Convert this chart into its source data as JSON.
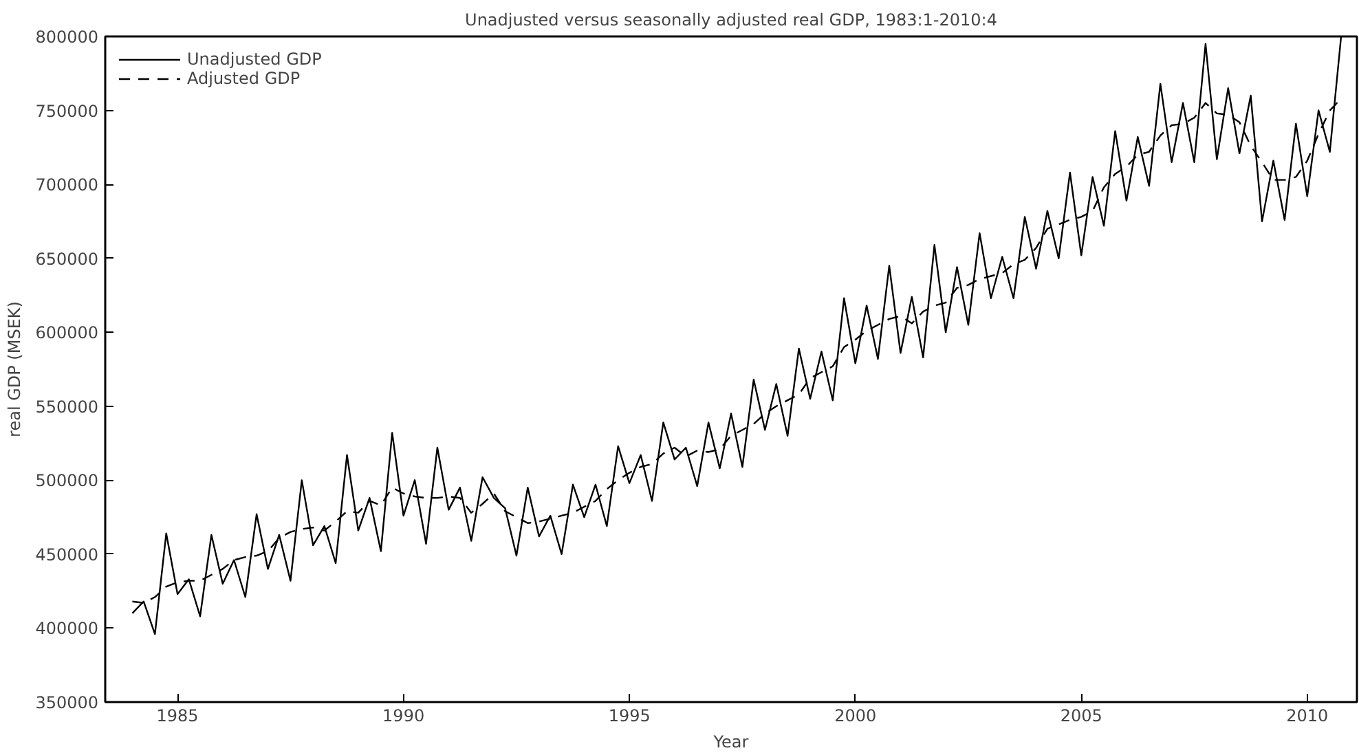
{
  "chart_data": {
    "type": "line",
    "title": "Unadjusted versus seasonally adjusted real GDP, 1983:1-2010:4",
    "xlabel": "Year",
    "ylabel": "real GDP (MSEK)",
    "x": [
      1984.0,
      1984.25,
      1984.5,
      1984.75,
      1985.0,
      1985.25,
      1985.5,
      1985.75,
      1986.0,
      1986.25,
      1986.5,
      1986.75,
      1987.0,
      1987.25,
      1987.5,
      1987.75,
      1988.0,
      1988.25,
      1988.5,
      1988.75,
      1989.0,
      1989.25,
      1989.5,
      1989.75,
      1990.0,
      1990.25,
      1990.5,
      1990.75,
      1991.0,
      1991.25,
      1991.5,
      1991.75,
      1992.0,
      1992.25,
      1992.5,
      1992.75,
      1993.0,
      1993.25,
      1993.5,
      1993.75,
      1994.0,
      1994.25,
      1994.5,
      1994.75,
      1995.0,
      1995.25,
      1995.5,
      1995.75,
      1996.0,
      1996.25,
      1996.5,
      1996.75,
      1997.0,
      1997.25,
      1997.5,
      1997.75,
      1998.0,
      1998.25,
      1998.5,
      1998.75,
      1999.0,
      1999.25,
      1999.5,
      1999.75,
      2000.0,
      2000.25,
      2000.5,
      2000.75,
      2001.0,
      2001.25,
      2001.5,
      2001.75,
      2002.0,
      2002.25,
      2002.5,
      2002.75,
      2003.0,
      2003.25,
      2003.5,
      2003.75,
      2004.0,
      2004.25,
      2004.5,
      2004.75,
      2005.0,
      2005.25,
      2005.5,
      2005.75,
      2006.0,
      2006.25,
      2006.5,
      2006.75,
      2007.0,
      2007.25,
      2007.5,
      2007.75,
      2008.0,
      2008.25,
      2008.5,
      2008.75,
      2009.0,
      2009.25,
      2009.5,
      2009.75,
      2010.0,
      2010.25,
      2010.5,
      2010.75
    ],
    "series": [
      {
        "name": "Unadjusted GDP",
        "color": "#000000",
        "line_style": "solid",
        "values": [
          410000,
          418000,
          396000,
          464000,
          423000,
          433000,
          408000,
          463000,
          430000,
          446000,
          421000,
          477000,
          440000,
          463000,
          432000,
          500000,
          456000,
          469000,
          444000,
          517000,
          466000,
          488000,
          452000,
          532000,
          476000,
          500000,
          457000,
          522000,
          480000,
          495000,
          459000,
          502000,
          488000,
          481000,
          449000,
          495000,
          462000,
          476000,
          450000,
          497000,
          475000,
          497000,
          469000,
          523000,
          498000,
          517000,
          486000,
          539000,
          514000,
          522000,
          496000,
          539000,
          508000,
          545000,
          509000,
          568000,
          534000,
          565000,
          530000,
          589000,
          555000,
          587000,
          554000,
          623000,
          579000,
          618000,
          582000,
          645000,
          586000,
          624000,
          583000,
          659000,
          600000,
          644000,
          605000,
          667000,
          623000,
          651000,
          623000,
          678000,
          643000,
          682000,
          650000,
          708000,
          652000,
          705000,
          672000,
          736000,
          689000,
          732000,
          699000,
          768000,
          715000,
          755000,
          715000,
          795000,
          717000,
          765000,
          721000,
          760000,
          675000,
          716000,
          676000,
          741000,
          692000,
          750000,
          722000,
          800000
        ]
      },
      {
        "name": "Adjusted GDP",
        "color": "#000000",
        "line_style": "dashed",
        "values": [
          418000,
          417000,
          421000,
          428000,
          431000,
          432000,
          432000,
          436000,
          440000,
          446000,
          448000,
          449000,
          452000,
          461000,
          465000,
          467000,
          468000,
          466000,
          472000,
          479000,
          478000,
          486000,
          483000,
          495000,
          491000,
          489000,
          488000,
          488000,
          489000,
          488000,
          478000,
          484000,
          491000,
          479000,
          475000,
          471000,
          472000,
          474000,
          476000,
          478000,
          482000,
          486000,
          494000,
          500000,
          505000,
          509000,
          511000,
          518000,
          522000,
          516000,
          520000,
          519000,
          521000,
          530000,
          534000,
          538000,
          545000,
          550000,
          554000,
          558000,
          569000,
          573000,
          577000,
          590000,
          595000,
          601000,
          605000,
          609000,
          611000,
          606000,
          614000,
          618000,
          620000,
          630000,
          632000,
          636000,
          638000,
          640000,
          646000,
          649000,
          657000,
          670000,
          673000,
          676000,
          678000,
          682000,
          698000,
          707000,
          712000,
          720000,
          722000,
          733000,
          740000,
          741000,
          745000,
          755000,
          748000,
          747000,
          742000,
          726000,
          715000,
          703000,
          703000,
          705000,
          716000,
          734000,
          750000,
          758000
        ]
      }
    ],
    "xlim": [
      1983.4,
      2011.1
    ],
    "ylim": [
      350000,
      800000
    ],
    "xticks": [
      1985,
      1990,
      1995,
      2000,
      2005,
      2010
    ],
    "yticks": [
      350000,
      400000,
      450000,
      500000,
      550000,
      600000,
      650000,
      700000,
      750000,
      800000
    ],
    "grid": false,
    "legend": "top left",
    "marker": "none"
  }
}
